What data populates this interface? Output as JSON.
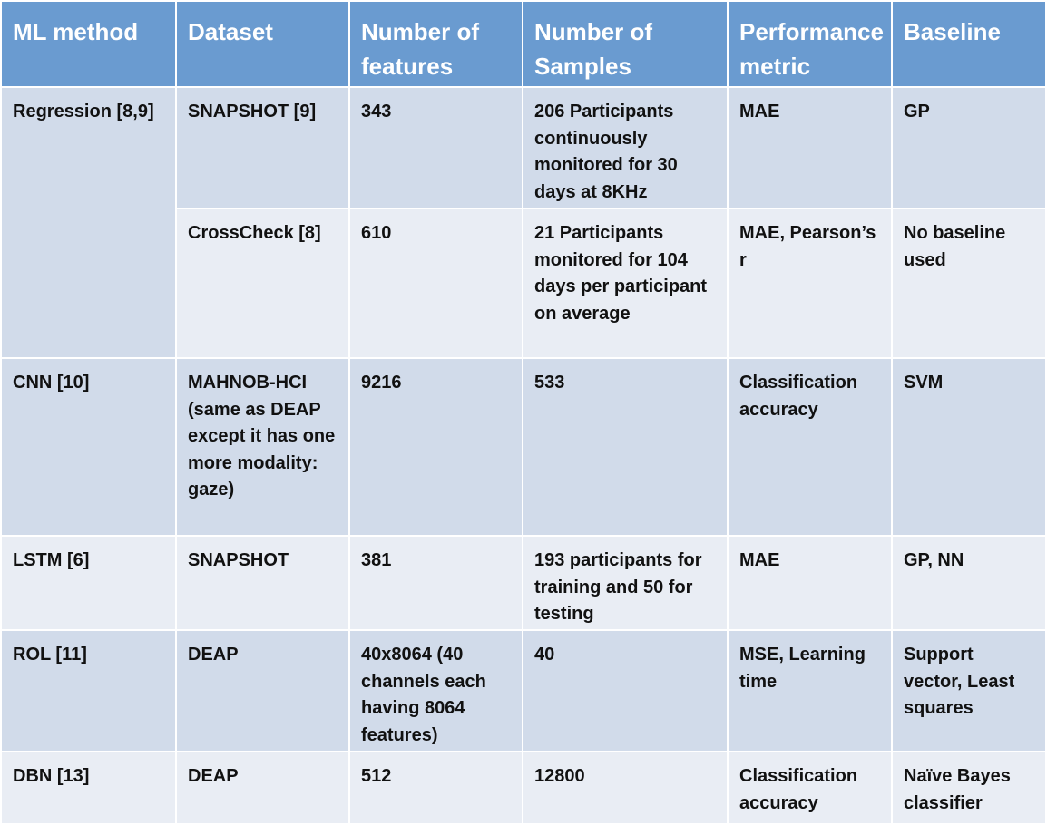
{
  "headers": [
    "ML method",
    "Dataset",
    "Number of features",
    "Number of Samples",
    "Performance metric",
    "Baseline"
  ],
  "rows": [
    {
      "method": "Regression [8,9]",
      "dataset": "SNAPSHOT [9]",
      "features": "343",
      "samples": "206 Participants continuously monitored for 30 days at 8KHz",
      "metric": "MAE",
      "baseline": "GP"
    },
    {
      "dataset": "CrossCheck [8]",
      "features": "610",
      "samples": "21 Participants monitored for 104 days per participant on average",
      "metric": "MAE, Pearson’s r",
      "baseline": "No baseline used"
    },
    {
      "method": "CNN [10]",
      "dataset": "MAHNOB-HCI (same as DEAP except it has one more modality: gaze)",
      "features": "9216",
      "samples": "533",
      "metric": "Classification accuracy",
      "baseline": "SVM"
    },
    {
      "method": "LSTM [6]",
      "dataset": "SNAPSHOT",
      "features": "381",
      "samples": "193 participants for training and 50 for testing",
      "metric": "MAE",
      "baseline": "GP, NN"
    },
    {
      "method": "ROL [11]",
      "dataset": "DEAP",
      "features": "40x8064 (40 channels each having 8064 features)",
      "samples": "40",
      "metric": "MSE, Learning time",
      "baseline": "Support vector, Least squares"
    },
    {
      "method": "DBN [13]",
      "dataset": "DEAP",
      "features": "512",
      "samples": "12800",
      "metric": "Classification accuracy",
      "baseline": "Naïve Bayes classifier"
    }
  ]
}
